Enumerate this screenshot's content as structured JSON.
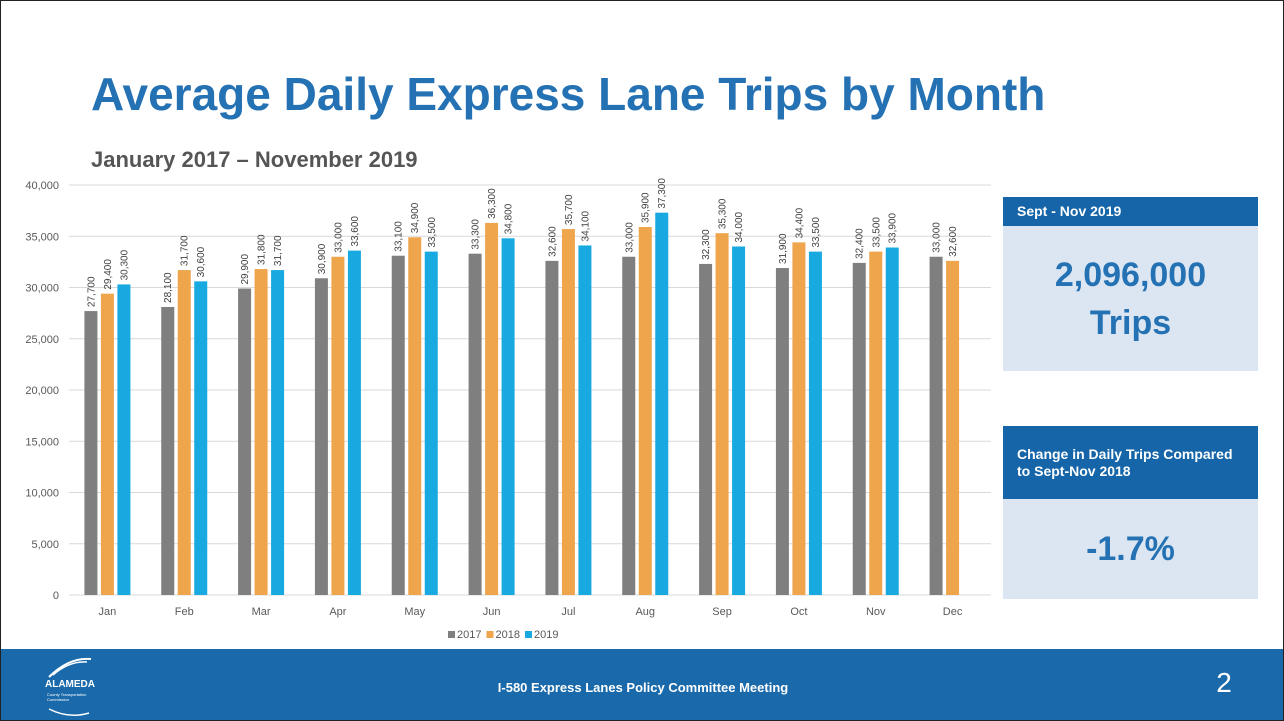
{
  "chart_data": {
    "type": "bar",
    "title": "Average Daily Express Lane Trips by Month",
    "subtitle": "January 2017 – November 2019",
    "categories": [
      "Jan",
      "Feb",
      "Mar",
      "Apr",
      "May",
      "Jun",
      "Jul",
      "Aug",
      "Sep",
      "Oct",
      "Nov",
      "Dec"
    ],
    "series": [
      {
        "name": "2017",
        "color": "#7f7f7f",
        "values": [
          27700,
          28100,
          29900,
          30900,
          33100,
          33300,
          32600,
          33000,
          32300,
          31900,
          32400,
          33000
        ],
        "value_labels": [
          "27,700",
          "28,100",
          "29,900",
          "30,900",
          "33,100",
          "33,300",
          "32,600",
          "33,000",
          "32,300",
          "31,900",
          "32,400",
          "33,000"
        ]
      },
      {
        "name": "2018",
        "color": "#eea54b",
        "values": [
          29400,
          31700,
          31800,
          33000,
          34900,
          36300,
          35700,
          35900,
          35300,
          34400,
          33500,
          32600
        ],
        "value_labels": [
          "29,400",
          "31,700",
          "31,800",
          "33,000",
          "34,900",
          "36,300",
          "35,700",
          "35,900",
          "35,300",
          "34,400",
          "33,500",
          "32,600"
        ]
      },
      {
        "name": "2019",
        "color": "#17a9df",
        "values": [
          30300,
          30600,
          31700,
          33600,
          33500,
          34800,
          34100,
          37300,
          34000,
          33500,
          33900,
          null
        ],
        "value_labels": [
          "30,300",
          "30,600",
          "31,700",
          "33,600",
          "33,500",
          "34,800",
          "34,100",
          "37,300",
          "34,000",
          "33,500",
          "33,900",
          null
        ]
      }
    ],
    "ylim": [
      0,
      40000
    ],
    "yticks": [
      0,
      {
        "value": 5000,
        "label": "5,000"
      },
      {
        "value": 10000,
        "label": "10,000"
      },
      {
        "value": 15000,
        "label": "15,000"
      },
      {
        "value": 20000,
        "label": "20,000"
      },
      {
        "value": 25000,
        "label": "25,000"
      },
      {
        "value": 30000,
        "label": "30,000"
      },
      {
        "value": 35000,
        "label": "35,000"
      },
      {
        "value": 40000,
        "label": "40,000"
      }
    ],
    "grid": true,
    "legend": "bottom"
  },
  "panels": [
    {
      "header": "Sept - Nov 2019",
      "lines": [
        "2,096,000",
        "Trips"
      ]
    },
    {
      "header": "Change in Daily Trips Compared to Sept-Nov 2018",
      "lines": [
        "-1.7%"
      ]
    }
  ],
  "footer": {
    "logo_name": "ALAMEDA",
    "logo_sub": "County Transportation Commission",
    "text": "I-580 Express Lanes Policy Committee Meeting",
    "page": 2
  }
}
